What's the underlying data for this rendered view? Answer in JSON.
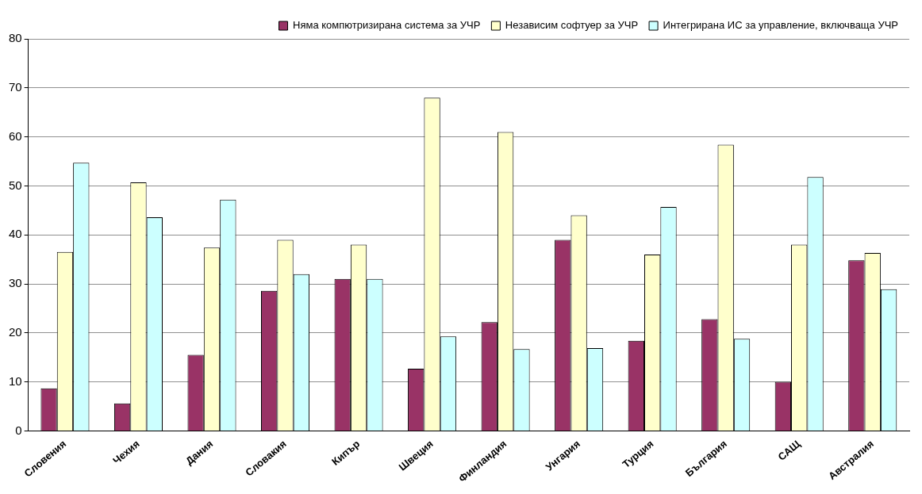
{
  "chart_data": {
    "type": "bar",
    "categories": [
      "Словения",
      "Чехия",
      "Дания",
      "Словакия",
      "Кипър",
      "Швеция",
      "Финландия",
      "Унгария",
      "Турция",
      "България",
      "САЩ",
      "Австралия"
    ],
    "series": [
      {
        "name": "Няма компютризирана система за УЧР",
        "color": "#993366",
        "values": [
          8.7,
          5.6,
          15.5,
          28.6,
          31,
          12.7,
          22.2,
          39,
          18.4,
          22.8,
          10,
          34.8
        ]
      },
      {
        "name": "Независим софтуер за УЧР",
        "color": "#ffffcc",
        "values": [
          36.5,
          50.7,
          37.4,
          39,
          38,
          68,
          61,
          44,
          36,
          58.4,
          38,
          36.3
        ]
      },
      {
        "name": "Интегрирана ИС за управление, включваща УЧР",
        "color": "#ccffff",
        "values": [
          54.7,
          43.6,
          47.2,
          32,
          31,
          19.3,
          16.7,
          16.9,
          45.7,
          18.8,
          51.8,
          28.9
        ]
      }
    ],
    "ylim": [
      0,
      80
    ],
    "yticks": [
      0,
      10,
      20,
      30,
      40,
      50,
      60,
      70,
      80
    ],
    "grid": "y",
    "legend": "top"
  }
}
